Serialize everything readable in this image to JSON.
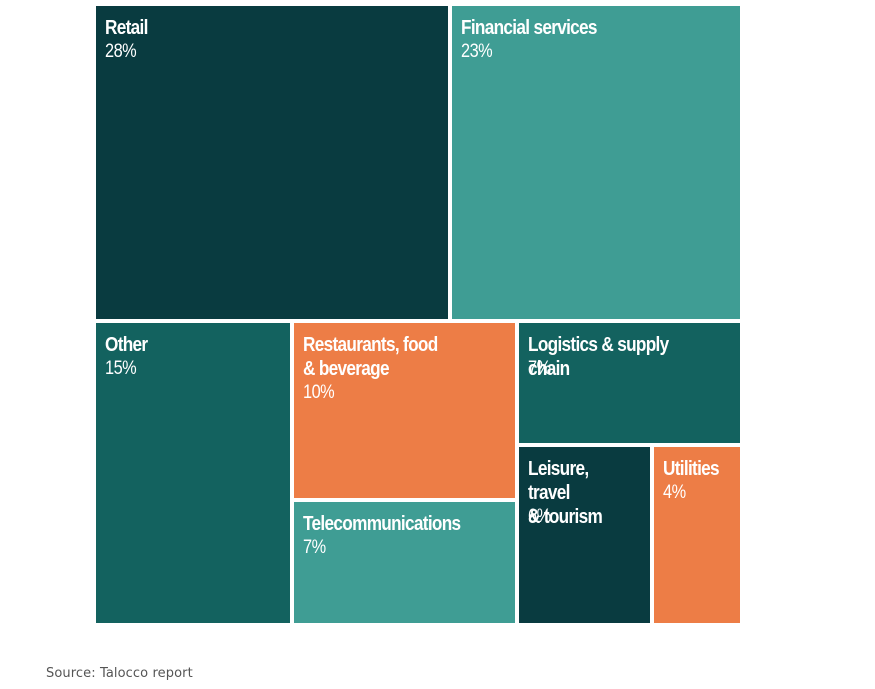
{
  "chart_data": {
    "type": "treemap",
    "unit": "%",
    "items": [
      {
        "label": "Retail",
        "value": 28,
        "value_label": "28%",
        "color": "#093b40"
      },
      {
        "label": "Financial services",
        "value": 23,
        "value_label": "23%",
        "color": "#3f9d94"
      },
      {
        "label": "Other",
        "value": 15,
        "value_label": "15%",
        "color": "#13625f"
      },
      {
        "label": "Restaurants, food\n& beverage",
        "value": 10,
        "value_label": "10%",
        "color": "#ed7d46"
      },
      {
        "label": "Logistics & supply chain",
        "value": 7,
        "value_label": "7%",
        "color": "#13625f"
      },
      {
        "label": "Telecommunications",
        "value": 7,
        "value_label": "7%",
        "color": "#3f9d94"
      },
      {
        "label": "Leisure, travel\n& tourism",
        "value": 6,
        "value_label": "6%",
        "color": "#093b40"
      },
      {
        "label": "Utilities",
        "value": 4,
        "value_label": "4%",
        "color": "#ed7d46"
      }
    ]
  },
  "source": "Source: Talocco report"
}
